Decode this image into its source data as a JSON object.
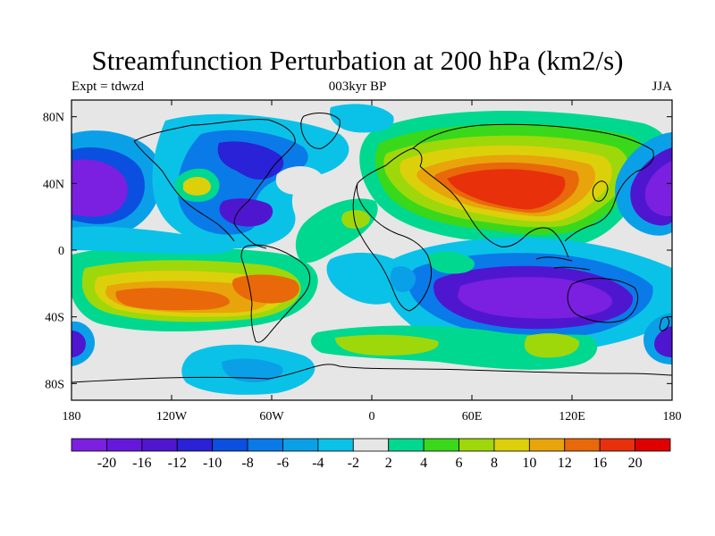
{
  "header": {
    "title": "Streamfunction Perturbation at 200 hPa (km2/s)",
    "left": "Expt = tdwzd",
    "center": "003kyr BP",
    "right": "JJA"
  },
  "axes": {
    "x_ticks": [
      "180",
      "120W",
      "60W",
      "0",
      "60E",
      "120E",
      "180"
    ],
    "y_ticks": [
      "80N",
      "40N",
      "0",
      "40S",
      "80S"
    ]
  },
  "colorbar": {
    "labels": [
      "-20",
      "-16",
      "-12",
      "-10",
      "-8",
      "-6",
      "-4",
      "-2",
      "2",
      "4",
      "6",
      "8",
      "10",
      "12",
      "16",
      "20"
    ],
    "colors": [
      "#7b1fe0",
      "#6518dc",
      "#4f16d0",
      "#2a22d6",
      "#0a4fe0",
      "#0a7ae8",
      "#0aa0e8",
      "#0ac2e8",
      "#e6e6e6",
      "#00d890",
      "#3ad81a",
      "#9ed80a",
      "#dcd00a",
      "#e8a40a",
      "#e8680a",
      "#e8300a",
      "#e00000"
    ]
  },
  "colors": {
    "coast": "#000000",
    "frame": "#000000"
  }
}
